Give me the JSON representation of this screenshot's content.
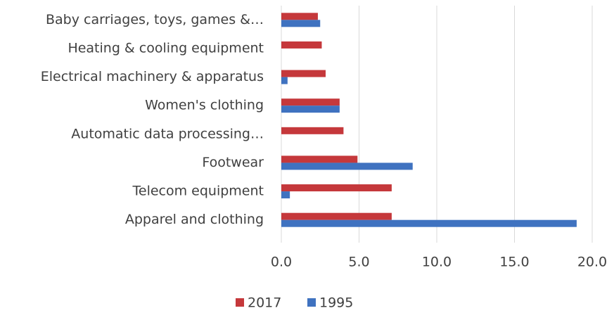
{
  "chart_data": {
    "type": "hbar",
    "categories": [
      "Baby carriages, toys, games &…",
      "Heating & cooling equipment",
      "Electrical machinery & apparatus",
      "Women's clothing",
      "Automatic data processing…",
      "Footwear",
      "Telecom equipment",
      "Apparel and clothing"
    ],
    "series": [
      {
        "name": "2017",
        "color": "#c5383b",
        "values": [
          2.35,
          2.6,
          2.85,
          3.75,
          4.0,
          4.9,
          7.1,
          7.1
        ]
      },
      {
        "name": "1995",
        "color": "#3f72c0",
        "values": [
          2.5,
          0,
          0.4,
          3.75,
          0,
          8.45,
          0.55,
          19.0
        ]
      }
    ],
    "xlim": [
      0,
      20
    ],
    "xticks": [
      {
        "value": 0,
        "label": "0.0"
      },
      {
        "value": 5,
        "label": "5.0"
      },
      {
        "value": 10,
        "label": "10.0"
      },
      {
        "value": 15,
        "label": "15.0"
      },
      {
        "value": 20,
        "label": "20.0"
      }
    ],
    "grid": true,
    "legend": "bottom"
  }
}
